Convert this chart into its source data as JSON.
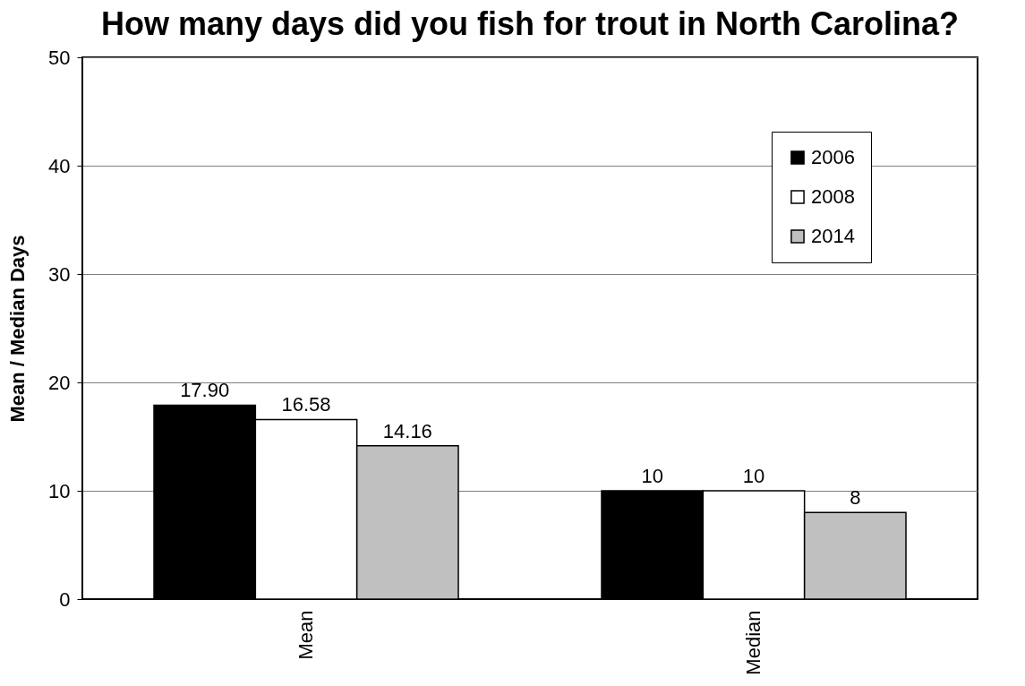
{
  "chart_data": {
    "type": "bar",
    "title": "How many days did you fish for trout in North Carolina?",
    "ylabel": "Mean / Median Days",
    "categories": [
      "Mean",
      "Median"
    ],
    "series": [
      {
        "name": "2006",
        "color": "#000000",
        "values": [
          17.9,
          10
        ],
        "value_labels": [
          "17.90",
          "10"
        ]
      },
      {
        "name": "2008",
        "color": "#ffffff",
        "values": [
          16.58,
          10
        ],
        "value_labels": [
          "16.58",
          "10"
        ]
      },
      {
        "name": "2014",
        "color": "#c0c0c0",
        "values": [
          14.16,
          8
        ],
        "value_labels": [
          "14.16",
          "8"
        ]
      }
    ],
    "ylim": [
      0,
      50
    ],
    "yticks": [
      0,
      10,
      20,
      30,
      40,
      50
    ],
    "grid": "y",
    "legend": "top right"
  }
}
